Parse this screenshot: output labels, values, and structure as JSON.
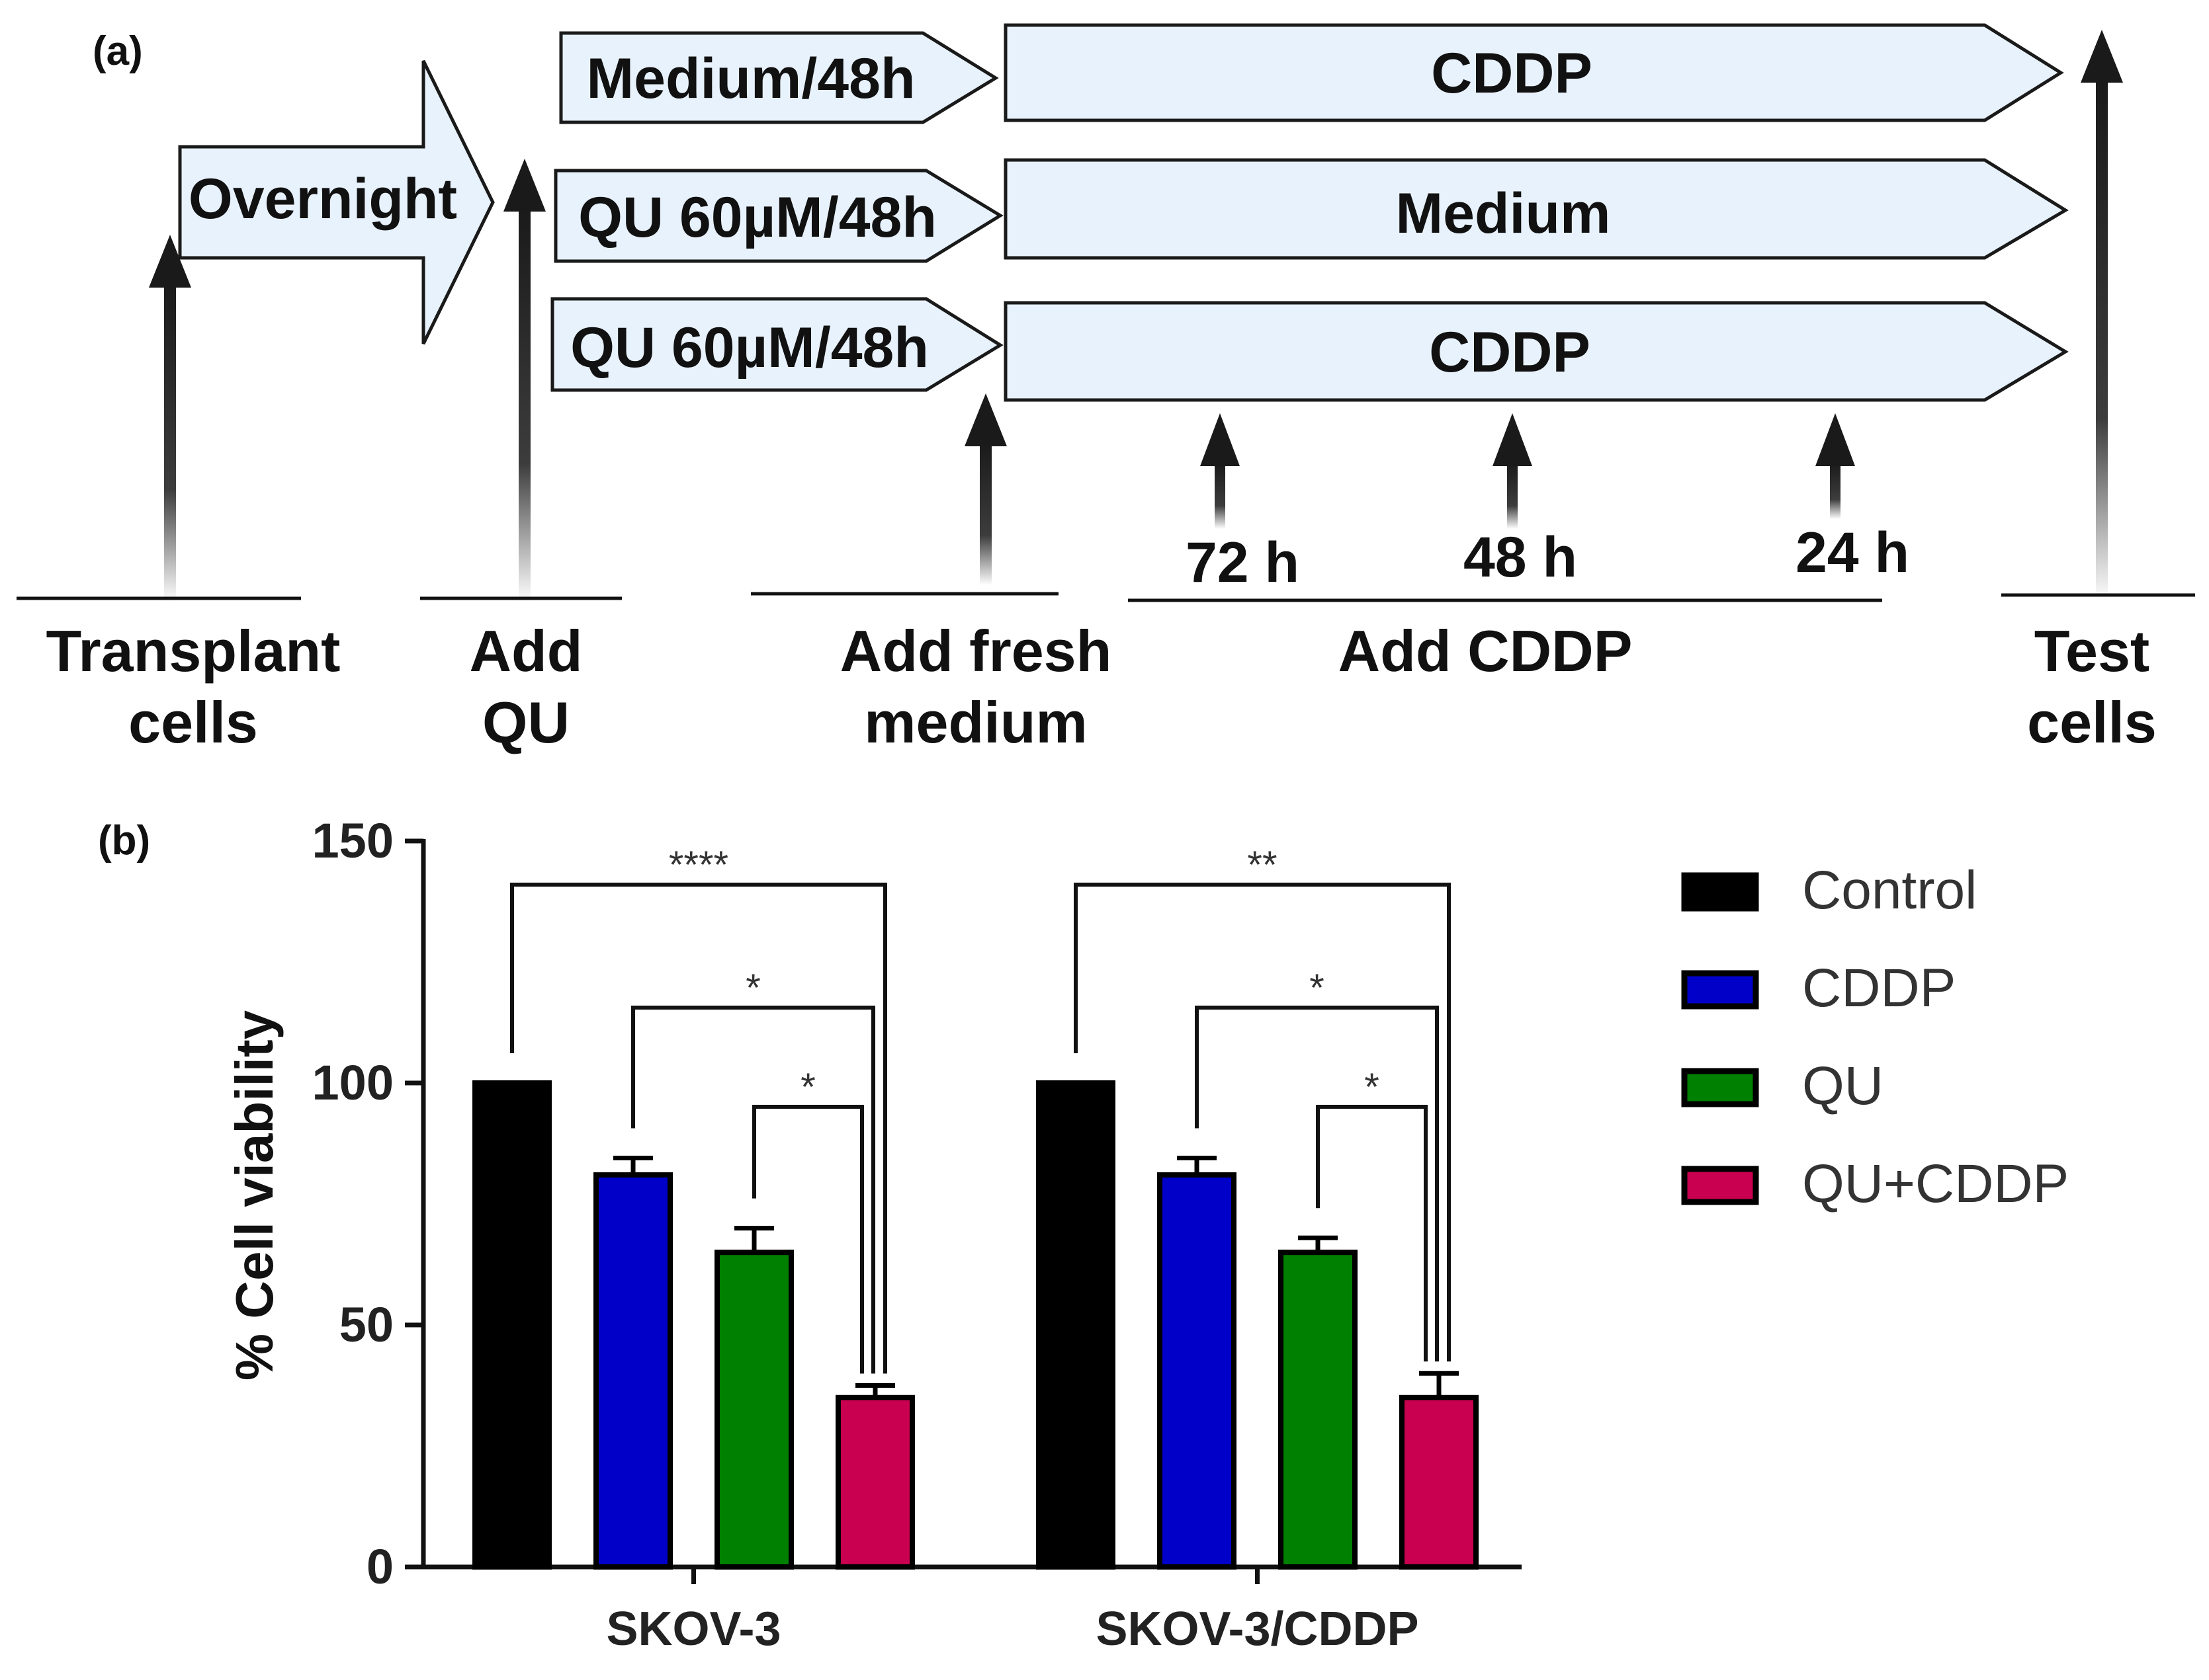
{
  "panel_a": {
    "label": "(a)",
    "overnight_label": "Overnight",
    "rows": [
      {
        "pretreat": "Medium/48h",
        "treatment": "CDDP"
      },
      {
        "pretreat": "QU 60µM/48h",
        "treatment": "Medium"
      },
      {
        "pretreat": "QU 60µM/48h",
        "treatment": "CDDP"
      }
    ],
    "time_points": [
      "72 h",
      "48 h",
      "24 h"
    ],
    "steps": {
      "transplant": [
        "Transplant",
        "cells"
      ],
      "add_qu": [
        "Add",
        "QU"
      ],
      "add_medium": [
        "Add fresh",
        "medium"
      ],
      "add_cddp": "Add CDDP",
      "test": [
        "Test",
        "cells"
      ]
    }
  },
  "colors": {
    "control": "#000000",
    "cddp": "#0000c8",
    "qu": "#008000",
    "qu_cddp": "#c8004f",
    "arrow_fill": "#e8f2fc"
  },
  "chart_data": {
    "type": "bar",
    "panel_label": "(b)",
    "ylabel": "% Cell viability",
    "xlabel": "",
    "ylim": [
      0,
      150
    ],
    "yticks": [
      0,
      50,
      100,
      150
    ],
    "categories": [
      "SKOV-3",
      "SKOV-3/CDDP"
    ],
    "series": [
      {
        "name": "Control",
        "values": [
          100,
          100
        ],
        "errors": [
          0,
          0
        ]
      },
      {
        "name": "CDDP",
        "values": [
          81,
          81
        ],
        "errors": [
          3.5,
          3.5
        ]
      },
      {
        "name": "QU",
        "values": [
          65,
          65
        ],
        "errors": [
          5,
          3
        ]
      },
      {
        "name": "QU+CDDP",
        "values": [
          35,
          35
        ],
        "errors": [
          2.5,
          5
        ]
      }
    ],
    "legend_position": "right",
    "significance": [
      {
        "group": 0,
        "from": 0,
        "to": 3,
        "label": "****"
      },
      {
        "group": 0,
        "from": 1,
        "to": 3,
        "label": "*"
      },
      {
        "group": 0,
        "from": 2,
        "to": 3,
        "label": "*"
      },
      {
        "group": 1,
        "from": 0,
        "to": 3,
        "label": "**"
      },
      {
        "group": 1,
        "from": 1,
        "to": 3,
        "label": "*"
      },
      {
        "group": 1,
        "from": 2,
        "to": 3,
        "label": "*"
      }
    ]
  }
}
